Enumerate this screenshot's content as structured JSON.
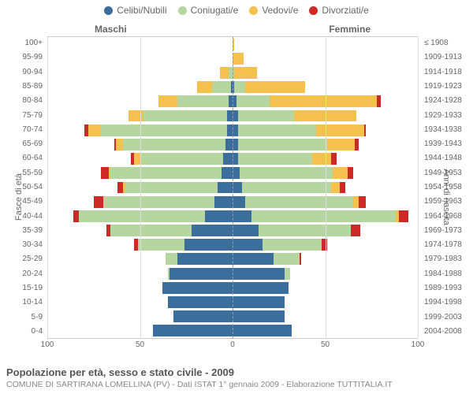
{
  "legend": [
    {
      "label": "Celibi/Nubili",
      "color": "#3b6e9b"
    },
    {
      "label": "Coniugati/e",
      "color": "#b5d6a0"
    },
    {
      "label": "Vedovi/e",
      "color": "#f4c04e"
    },
    {
      "label": "Divorziati/e",
      "color": "#cc2a27"
    }
  ],
  "headers": {
    "left": "Maschi",
    "right": "Femmine"
  },
  "axis": {
    "left_title": "Fasce di età",
    "right_title": "Anni di nascita"
  },
  "footer": {
    "title": "Popolazione per età, sesso e stato civile - 2009",
    "sub": "COMUNE DI SARTIRANA LOMELLINA (PV) - Dati ISTAT 1° gennaio 2009 - Elaborazione TUTTITALIA.IT"
  },
  "chart": {
    "type": "population-pyramid",
    "xmax": 100,
    "xticks": [
      100,
      50,
      0,
      50,
      100
    ],
    "grid_at": [
      100,
      50,
      0,
      50,
      100
    ],
    "bar_gap": 0.18,
    "background": "#ffffff",
    "grid_color": "#dddddd",
    "centerline_color": "#999999",
    "age_labels": [
      "0-4",
      "5-9",
      "10-14",
      "15-19",
      "20-24",
      "25-29",
      "30-34",
      "35-39",
      "40-44",
      "45-49",
      "50-54",
      "55-59",
      "60-64",
      "65-69",
      "70-74",
      "75-79",
      "80-84",
      "85-89",
      "90-94",
      "95-99",
      "100+"
    ],
    "year_labels": [
      "2004-2008",
      "1999-2003",
      "1994-1998",
      "1989-1993",
      "1984-1988",
      "1979-1983",
      "1974-1978",
      "1969-1973",
      "1964-1968",
      "1959-1963",
      "1954-1958",
      "1949-1953",
      "1944-1948",
      "1939-1943",
      "1934-1938",
      "1929-1933",
      "1924-1928",
      "1919-1923",
      "1914-1918",
      "1909-1913",
      "≤ 1908"
    ],
    "male": [
      {
        "s": 43,
        "m": 0,
        "w": 0,
        "d": 0
      },
      {
        "s": 32,
        "m": 0,
        "w": 0,
        "d": 0
      },
      {
        "s": 35,
        "m": 0,
        "w": 0,
        "d": 0
      },
      {
        "s": 38,
        "m": 0,
        "w": 0,
        "d": 0
      },
      {
        "s": 34,
        "m": 1,
        "w": 0,
        "d": 0
      },
      {
        "s": 30,
        "m": 6,
        "w": 0,
        "d": 0
      },
      {
        "s": 26,
        "m": 25,
        "w": 0,
        "d": 2
      },
      {
        "s": 22,
        "m": 44,
        "w": 0,
        "d": 2
      },
      {
        "s": 15,
        "m": 68,
        "w": 0,
        "d": 3
      },
      {
        "s": 10,
        "m": 60,
        "w": 0,
        "d": 5
      },
      {
        "s": 8,
        "m": 50,
        "w": 1,
        "d": 3
      },
      {
        "s": 6,
        "m": 60,
        "w": 1,
        "d": 4
      },
      {
        "s": 5,
        "m": 45,
        "w": 3,
        "d": 2
      },
      {
        "s": 4,
        "m": 55,
        "w": 4,
        "d": 1
      },
      {
        "s": 3,
        "m": 68,
        "w": 7,
        "d": 2
      },
      {
        "s": 3,
        "m": 45,
        "w": 8,
        "d": 0
      },
      {
        "s": 2,
        "m": 28,
        "w": 10,
        "d": 0
      },
      {
        "s": 1,
        "m": 10,
        "w": 8,
        "d": 0
      },
      {
        "s": 0,
        "m": 2,
        "w": 5,
        "d": 0
      },
      {
        "s": 0,
        "m": 0,
        "w": 0,
        "d": 0
      },
      {
        "s": 0,
        "m": 0,
        "w": 0,
        "d": 0
      }
    ],
    "female": [
      {
        "s": 32,
        "m": 0,
        "w": 0,
        "d": 0
      },
      {
        "s": 28,
        "m": 0,
        "w": 0,
        "d": 0
      },
      {
        "s": 28,
        "m": 0,
        "w": 0,
        "d": 0
      },
      {
        "s": 30,
        "m": 0,
        "w": 0,
        "d": 0
      },
      {
        "s": 28,
        "m": 3,
        "w": 0,
        "d": 0
      },
      {
        "s": 22,
        "m": 14,
        "w": 0,
        "d": 1
      },
      {
        "s": 16,
        "m": 32,
        "w": 0,
        "d": 3
      },
      {
        "s": 14,
        "m": 50,
        "w": 0,
        "d": 5
      },
      {
        "s": 10,
        "m": 78,
        "w": 2,
        "d": 5
      },
      {
        "s": 7,
        "m": 58,
        "w": 3,
        "d": 4
      },
      {
        "s": 5,
        "m": 48,
        "w": 5,
        "d": 3
      },
      {
        "s": 4,
        "m": 50,
        "w": 8,
        "d": 3
      },
      {
        "s": 3,
        "m": 40,
        "w": 10,
        "d": 3
      },
      {
        "s": 3,
        "m": 48,
        "w": 15,
        "d": 2
      },
      {
        "s": 3,
        "m": 42,
        "w": 26,
        "d": 1
      },
      {
        "s": 3,
        "m": 30,
        "w": 34,
        "d": 0
      },
      {
        "s": 2,
        "m": 18,
        "w": 58,
        "d": 2
      },
      {
        "s": 1,
        "m": 6,
        "w": 32,
        "d": 0
      },
      {
        "s": 0,
        "m": 1,
        "w": 12,
        "d": 0
      },
      {
        "s": 0,
        "m": 0,
        "w": 6,
        "d": 0
      },
      {
        "s": 0,
        "m": 0,
        "w": 1,
        "d": 0
      }
    ]
  }
}
